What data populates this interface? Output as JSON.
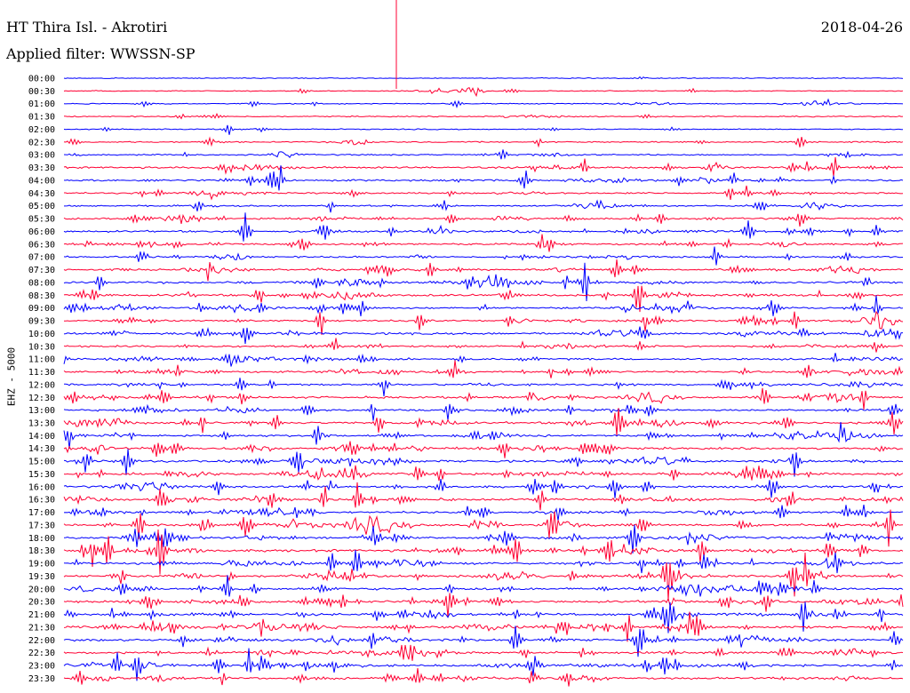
{
  "header": {
    "station": "HT Thira Isl. - Akrotiri",
    "date": "2018-04-26",
    "filter": "Applied filter: WWSSN-SP"
  },
  "channel": "EHZ - 5000",
  "colors": {
    "trace_a": "#0000ff",
    "trace_b": "#ff0033",
    "text": "#000000",
    "background": "#ffffff"
  },
  "rows": [
    {
      "label": "00:00",
      "color": "trace_a",
      "activity": 0.03
    },
    {
      "label": "00:30",
      "color": "trace_b",
      "activity": 0.05
    },
    {
      "label": "01:00",
      "color": "trace_a",
      "activity": 0.08
    },
    {
      "label": "01:30",
      "color": "trace_b",
      "activity": 0.1
    },
    {
      "label": "02:00",
      "color": "trace_a",
      "activity": 0.1
    },
    {
      "label": "02:30",
      "color": "trace_b",
      "activity": 0.18
    },
    {
      "label": "03:00",
      "color": "trace_a",
      "activity": 0.22
    },
    {
      "label": "03:30",
      "color": "trace_b",
      "activity": 0.38
    },
    {
      "label": "04:00",
      "color": "trace_a",
      "activity": 0.42
    },
    {
      "label": "04:30",
      "color": "trace_b",
      "activity": 0.3
    },
    {
      "label": "05:00",
      "color": "trace_a",
      "activity": 0.28
    },
    {
      "label": "05:30",
      "color": "trace_b",
      "activity": 0.4
    },
    {
      "label": "06:00",
      "color": "trace_a",
      "activity": 0.45
    },
    {
      "label": "06:30",
      "color": "trace_b",
      "activity": 0.42
    },
    {
      "label": "07:00",
      "color": "trace_a",
      "activity": 0.35
    },
    {
      "label": "07:30",
      "color": "trace_b",
      "activity": 0.42
    },
    {
      "label": "08:00",
      "color": "trace_a",
      "activity": 0.5
    },
    {
      "label": "08:30",
      "color": "trace_b",
      "activity": 0.5
    },
    {
      "label": "09:00",
      "color": "trace_a",
      "activity": 0.4
    },
    {
      "label": "09:30",
      "color": "trace_b",
      "activity": 0.42
    },
    {
      "label": "10:00",
      "color": "trace_a",
      "activity": 0.5
    },
    {
      "label": "10:30",
      "color": "trace_b",
      "activity": 0.45
    },
    {
      "label": "11:00",
      "color": "trace_a",
      "activity": 0.48
    },
    {
      "label": "11:30",
      "color": "trace_b",
      "activity": 0.45
    },
    {
      "label": "12:00",
      "color": "trace_a",
      "activity": 0.42
    },
    {
      "label": "12:30",
      "color": "trace_b",
      "activity": 0.5
    },
    {
      "label": "13:00",
      "color": "trace_a",
      "activity": 0.45
    },
    {
      "label": "13:30",
      "color": "trace_b",
      "activity": 0.52
    },
    {
      "label": "14:00",
      "color": "trace_a",
      "activity": 0.5
    },
    {
      "label": "14:30",
      "color": "trace_b",
      "activity": 0.5
    },
    {
      "label": "15:00",
      "color": "trace_a",
      "activity": 0.55
    },
    {
      "label": "15:30",
      "color": "trace_b",
      "activity": 0.6
    },
    {
      "label": "16:00",
      "color": "trace_a",
      "activity": 0.55
    },
    {
      "label": "16:30",
      "color": "trace_b",
      "activity": 0.6
    },
    {
      "label": "17:00",
      "color": "trace_a",
      "activity": 0.5
    },
    {
      "label": "17:30",
      "color": "trace_b",
      "activity": 0.6
    },
    {
      "label": "18:00",
      "color": "trace_a",
      "activity": 0.6
    },
    {
      "label": "18:30",
      "color": "trace_b",
      "activity": 0.62
    },
    {
      "label": "19:00",
      "color": "trace_a",
      "activity": 0.55
    },
    {
      "label": "19:30",
      "color": "trace_b",
      "activity": 0.6
    },
    {
      "label": "20:00",
      "color": "trace_a",
      "activity": 0.6
    },
    {
      "label": "20:30",
      "color": "trace_b",
      "activity": 0.62
    },
    {
      "label": "21:00",
      "color": "trace_a",
      "activity": 0.6
    },
    {
      "label": "21:30",
      "color": "trace_b",
      "activity": 0.65
    },
    {
      "label": "22:00",
      "color": "trace_a",
      "activity": 0.62
    },
    {
      "label": "22:30",
      "color": "trace_b",
      "activity": 0.6
    },
    {
      "label": "23:00",
      "color": "trace_a",
      "activity": 0.55
    },
    {
      "label": "23:30",
      "color": "trace_b",
      "activity": 0.5
    }
  ]
}
